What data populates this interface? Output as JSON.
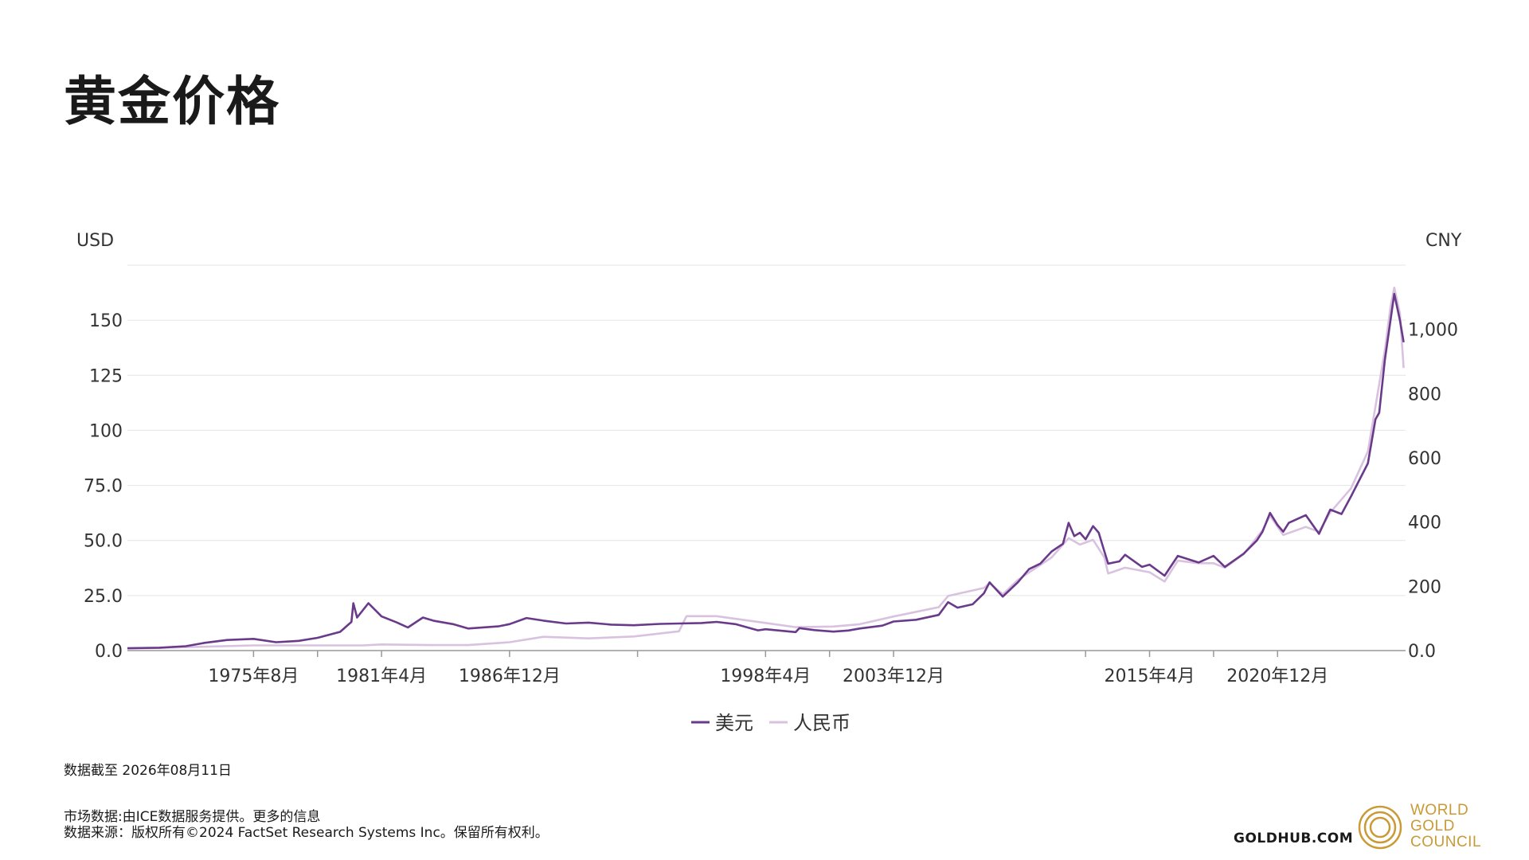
{
  "page": {
    "title": "黄金价格",
    "as_of": "数据截至 2026年08月11日",
    "footnote_line1": "市场数据:由ICE数据服务提供。更多的信息",
    "footnote_line2": "数据来源：版权所有©2024 FactSet Research Systems Inc。保留所有权利。",
    "site": "GOLDHUB.COM",
    "logo_lines": [
      "WORLD",
      "GOLD",
      "COUNCIL"
    ]
  },
  "colors": {
    "usd": "#6a3a8a",
    "cny": "#d9c2e0",
    "logo": "#c99a36"
  },
  "chart_data": {
    "type": "line",
    "title": "黄金价格",
    "y_left_label": "USD",
    "y_right_label": "CNY",
    "y_left_lim": [
      0,
      175
    ],
    "y_right_lim": [
      0,
      1200
    ],
    "y_left_ticks": [
      0,
      25,
      50,
      75,
      100,
      125,
      150
    ],
    "y_left_tick_labels": [
      "0.0",
      "25.0",
      "50.0",
      "75.0",
      "100",
      "125",
      "150"
    ],
    "y_right_ticks": [
      0,
      200,
      400,
      600,
      800,
      1000
    ],
    "y_right_tick_labels": [
      "0.0",
      "200",
      "400",
      "600",
      "800",
      "1,000"
    ],
    "x_range": [
      "1970-01",
      "2026-08"
    ],
    "x_tick_labels": [
      "1975年8月",
      "1981年4月",
      "1986年12月",
      "1998年4月",
      "2003年12月",
      "2015年4月",
      "2020年12月"
    ],
    "x_tick_dates": [
      "1975-08",
      "1981-04",
      "1986-12",
      "1998-04",
      "2003-12",
      "2015-04",
      "2020-12"
    ],
    "x_minor_dates": [
      "1978-06",
      "1992-08",
      "2001-02",
      "2012-06",
      "2018-02"
    ],
    "legend": [
      "美元",
      "人民币"
    ],
    "legend_position": "bottom-center",
    "grid": true,
    "series": [
      {
        "name": "美元",
        "axis": "left",
        "points": [
          [
            "1970-01",
            1.1
          ],
          [
            "1971-06",
            1.3
          ],
          [
            "1972-08",
            2
          ],
          [
            "1973-06",
            3.5
          ],
          [
            "1974-06",
            4.8
          ],
          [
            "1975-08",
            5.3
          ],
          [
            "1976-08",
            3.8
          ],
          [
            "1977-08",
            4.4
          ],
          [
            "1978-06",
            5.8
          ],
          [
            "1979-06",
            8.5
          ],
          [
            "1979-12",
            13
          ],
          [
            "1980-01",
            21.5
          ],
          [
            "1980-03",
            15
          ],
          [
            "1980-09",
            21.5
          ],
          [
            "1981-04",
            15.5
          ],
          [
            "1981-12",
            12.8
          ],
          [
            "1982-06",
            10.5
          ],
          [
            "1983-02",
            15
          ],
          [
            "1983-08",
            13.5
          ],
          [
            "1984-06",
            12
          ],
          [
            "1985-02",
            10
          ],
          [
            "1986-06",
            11
          ],
          [
            "1986-12",
            12
          ],
          [
            "1987-09",
            14.8
          ],
          [
            "1988-06",
            13.6
          ],
          [
            "1989-06",
            12.3
          ],
          [
            "1990-06",
            12.7
          ],
          [
            "1991-06",
            11.8
          ],
          [
            "1992-06",
            11.5
          ],
          [
            "1993-08",
            12.1
          ],
          [
            "1994-06",
            12.3
          ],
          [
            "1995-06",
            12.5
          ],
          [
            "1996-02",
            13
          ],
          [
            "1996-12",
            12
          ],
          [
            "1997-12",
            9.2
          ],
          [
            "1998-04",
            9.7
          ],
          [
            "1999-08",
            8.4
          ],
          [
            "1999-10",
            10.2
          ],
          [
            "2000-06",
            9.3
          ],
          [
            "2001-04",
            8.6
          ],
          [
            "2001-12",
            9.1
          ],
          [
            "2002-06",
            10
          ],
          [
            "2003-06",
            11.3
          ],
          [
            "2003-12",
            13.2
          ],
          [
            "2004-12",
            14
          ],
          [
            "2005-12",
            16.2
          ],
          [
            "2006-05",
            22
          ],
          [
            "2006-10",
            19.5
          ],
          [
            "2007-06",
            21
          ],
          [
            "2007-12",
            26
          ],
          [
            "2008-03",
            31
          ],
          [
            "2008-10",
            24.5
          ],
          [
            "2009-06",
            31
          ],
          [
            "2009-12",
            37
          ],
          [
            "2010-06",
            39.5
          ],
          [
            "2010-12",
            45
          ],
          [
            "2011-06",
            48.5
          ],
          [
            "2011-09",
            58
          ],
          [
            "2011-12",
            52
          ],
          [
            "2012-03",
            53.5
          ],
          [
            "2012-06",
            50.5
          ],
          [
            "2012-10",
            56.5
          ],
          [
            "2013-01",
            53.5
          ],
          [
            "2013-04",
            45
          ],
          [
            "2013-06",
            39.5
          ],
          [
            "2013-12",
            40.5
          ],
          [
            "2014-03",
            43.5
          ],
          [
            "2014-12",
            38
          ],
          [
            "2015-04",
            39
          ],
          [
            "2015-12",
            34
          ],
          [
            "2016-07",
            43
          ],
          [
            "2017-06",
            40
          ],
          [
            "2018-02",
            43
          ],
          [
            "2018-08",
            38
          ],
          [
            "2019-06",
            44
          ],
          [
            "2020-01",
            50
          ],
          [
            "2020-04",
            54
          ],
          [
            "2020-08",
            62.5
          ],
          [
            "2020-12",
            57
          ],
          [
            "2021-03",
            54
          ],
          [
            "2021-06",
            58
          ],
          [
            "2022-03",
            61.5
          ],
          [
            "2022-10",
            53
          ],
          [
            "2023-04",
            64
          ],
          [
            "2023-10",
            62
          ],
          [
            "2024-03",
            70
          ],
          [
            "2024-06",
            75
          ],
          [
            "2024-12",
            85
          ],
          [
            "2025-04",
            105
          ],
          [
            "2025-06",
            108
          ],
          [
            "2025-09",
            132
          ],
          [
            "2025-12",
            150
          ],
          [
            "2026-02",
            162
          ],
          [
            "2026-05",
            150
          ],
          [
            "2026-07",
            140
          ]
        ]
      },
      {
        "name": "人民币",
        "axis": "right",
        "points": [
          [
            "1970-01",
            6
          ],
          [
            "1975-08",
            16
          ],
          [
            "1980-06",
            16
          ],
          [
            "1981-04",
            19
          ],
          [
            "1983-06",
            17
          ],
          [
            "1985-02",
            17
          ],
          [
            "1986-12",
            26
          ],
          [
            "1988-06",
            43
          ],
          [
            "1990-06",
            38
          ],
          [
            "1992-06",
            44
          ],
          [
            "1994-06",
            60
          ],
          [
            "1994-10",
            107
          ],
          [
            "1996-02",
            107
          ],
          [
            "1998-04",
            86
          ],
          [
            "1999-08",
            73
          ],
          [
            "2001-04",
            75
          ],
          [
            "2002-06",
            82
          ],
          [
            "2003-12",
            106
          ],
          [
            "2005-12",
            135
          ],
          [
            "2006-05",
            170
          ],
          [
            "2007-12",
            195
          ],
          [
            "2008-03",
            210
          ],
          [
            "2008-10",
            175
          ],
          [
            "2009-06",
            220
          ],
          [
            "2010-12",
            290
          ],
          [
            "2011-09",
            350
          ],
          [
            "2012-03",
            330
          ],
          [
            "2012-10",
            345
          ],
          [
            "2013-04",
            290
          ],
          [
            "2013-06",
            240
          ],
          [
            "2014-03",
            258
          ],
          [
            "2015-04",
            244
          ],
          [
            "2015-12",
            215
          ],
          [
            "2016-07",
            280
          ],
          [
            "2017-06",
            272
          ],
          [
            "2018-02",
            272
          ],
          [
            "2018-08",
            258
          ],
          [
            "2019-06",
            300
          ],
          [
            "2020-04",
            375
          ],
          [
            "2020-08",
            420
          ],
          [
            "2021-03",
            360
          ],
          [
            "2022-03",
            385
          ],
          [
            "2022-10",
            370
          ],
          [
            "2023-04",
            430
          ],
          [
            "2024-03",
            505
          ],
          [
            "2024-12",
            620
          ],
          [
            "2025-04",
            760
          ],
          [
            "2025-09",
            935
          ],
          [
            "2025-12",
            1070
          ],
          [
            "2026-02",
            1130
          ],
          [
            "2026-05",
            1050
          ],
          [
            "2026-07",
            880
          ]
        ]
      }
    ]
  }
}
